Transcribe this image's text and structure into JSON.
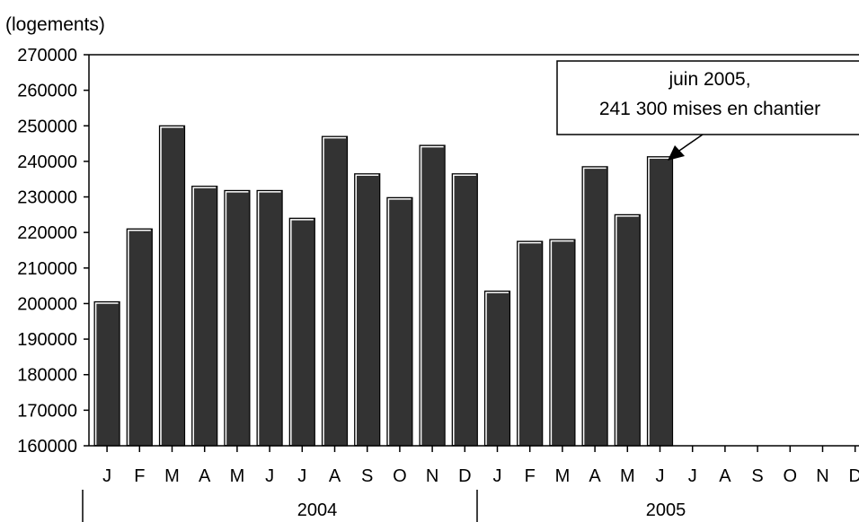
{
  "chart_data": {
    "type": "bar",
    "unit_label": "(logements)",
    "ylim": [
      160000,
      270000
    ],
    "y_ticks": [
      "270000",
      "260000",
      "250000",
      "240000",
      "230000",
      "220000",
      "210000",
      "200000",
      "190000",
      "180000",
      "170000",
      "160000"
    ],
    "categories": [
      "J",
      "F",
      "M",
      "A",
      "M",
      "J",
      "J",
      "A",
      "S",
      "O",
      "N",
      "D",
      "J",
      "F",
      "M",
      "A",
      "M",
      "J",
      "J",
      "A",
      "S",
      "O",
      "N",
      "D"
    ],
    "values": [
      200500,
      221000,
      250000,
      233000,
      231800,
      231800,
      224000,
      247000,
      236500,
      229800,
      244500,
      236500,
      203500,
      217500,
      218000,
      238500,
      225000,
      241300,
      null,
      null,
      null,
      null,
      null,
      null
    ],
    "groups": [
      {
        "label": "2004"
      },
      {
        "label": "2005"
      }
    ],
    "annotation": {
      "line1": "juin 2005,",
      "line2": "241 300 mises en chantier"
    },
    "colors": {
      "bar": "#333333",
      "bar_edge": "#000000",
      "axis": "#000000"
    }
  }
}
